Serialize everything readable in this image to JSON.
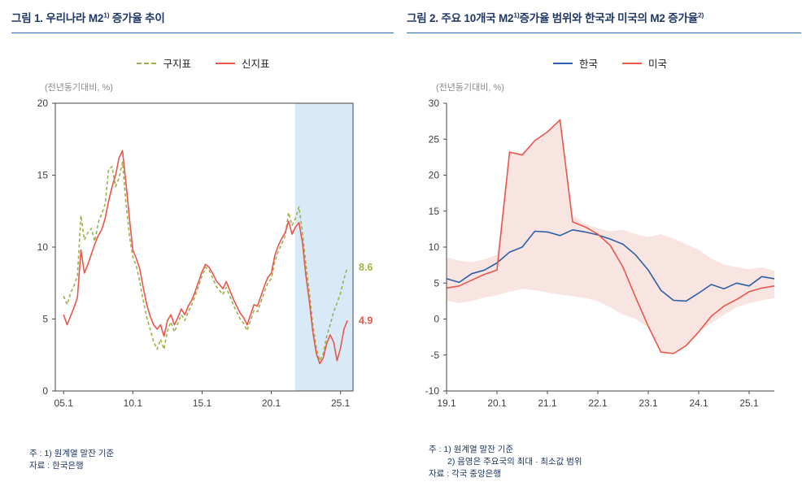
{
  "figures": [
    {
      "title_prefix": "그림 1. 우리나라 M2",
      "title_sup": "1)",
      "title_mid": " 증가율 추이",
      "title_sup2": "",
      "unit_label": "(전년동기대비, %)",
      "legend": [
        {
          "label": "구지표",
          "color": "#9bb348",
          "dash": true
        },
        {
          "label": "신지표",
          "color": "#e9564b",
          "dash": false
        }
      ],
      "notes": [
        "주 : 1) 원계열 말잔 기준",
        "자료 : 한국은행"
      ]
    },
    {
      "title_prefix": "그림 2. 주요 10개국 M2",
      "title_sup": "1)",
      "title_mid": "증가율 범위와 한국과 미국의 M2 증가율",
      "title_sup2": "2)",
      "unit_label": "(전년동기대비, %)",
      "legend": [
        {
          "label": "한국",
          "color": "#2b5fa8",
          "dash": false
        },
        {
          "label": "미국",
          "color": "#e9564b",
          "dash": false
        }
      ],
      "notes": [
        "주 : 1) 원계열 말잔 기준",
        "2) 음영은 주요국의 최대 · 최소값 범위",
        "자료 : 각국 중앙은행"
      ]
    }
  ],
  "chart_data": [
    {
      "type": "line",
      "title": "우리나라 M2 증가율 추이",
      "ylabel": "(전년동기대비, %)",
      "xlim": [
        2004.4,
        2025.9
      ],
      "ylim": [
        0,
        20
      ],
      "yticks": [
        0,
        5,
        10,
        15,
        20
      ],
      "xticks": [
        2005,
        2010,
        2015,
        2020,
        2025
      ],
      "xtick_labels": [
        "05.1",
        "10.1",
        "15.1",
        "20.1",
        "25.1"
      ],
      "frame": "box",
      "grid": false,
      "x_start": 2005.0,
      "x_step": 0.25,
      "highlight_span": {
        "x_from": 2021.7,
        "x_to": 2025.9,
        "color": "#d8eaf8"
      },
      "series": [
        {
          "name": "구지표",
          "color": "#9bb348",
          "dash": [
            4,
            3
          ],
          "end_label": "8.6",
          "values": [
            6.6,
            6.0,
            6.8,
            7.3,
            8.0,
            12.2,
            10.5,
            11.0,
            11.3,
            10.4,
            11.7,
            12.3,
            13.0,
            15.4,
            15.6,
            14.2,
            14.8,
            15.9,
            13.1,
            10.8,
            9.3,
            8.7,
            7.6,
            6.3,
            5.1,
            4.3,
            3.4,
            2.9,
            3.6,
            2.9,
            4.2,
            4.8,
            4.1,
            4.7,
            5.3,
            4.9,
            5.5,
            6.0,
            6.6,
            7.3,
            8.0,
            8.6,
            8.4,
            7.9,
            7.3,
            7.0,
            6.7,
            7.2,
            6.6,
            6.0,
            5.5,
            5.0,
            4.7,
            4.2,
            4.9,
            5.6,
            5.5,
            6.2,
            6.9,
            7.5,
            7.8,
            9.0,
            9.7,
            10.2,
            10.8,
            12.4,
            11.5,
            12.0,
            12.8,
            11.0,
            8.8,
            6.8,
            4.6,
            3.0,
            2.1,
            2.6,
            3.8,
            4.6,
            5.5,
            6.1,
            6.8,
            7.8,
            8.6
          ]
        },
        {
          "name": "신지표",
          "color": "#e9564b",
          "dash": null,
          "end_label": "4.9",
          "values": [
            5.3,
            4.6,
            5.2,
            5.8,
            6.5,
            9.8,
            8.2,
            8.8,
            9.5,
            10.2,
            10.8,
            11.2,
            12.0,
            13.2,
            14.2,
            15.0,
            16.2,
            16.7,
            14.5,
            12.0,
            9.8,
            9.2,
            8.5,
            7.2,
            6.0,
            5.2,
            4.6,
            4.3,
            4.6,
            3.8,
            4.9,
            5.3,
            4.6,
            5.1,
            5.7,
            5.3,
            5.9,
            6.3,
            6.9,
            7.6,
            8.3,
            8.8,
            8.6,
            8.2,
            7.7,
            7.4,
            7.1,
            7.6,
            7.0,
            6.4,
            5.9,
            5.4,
            5.1,
            4.6,
            5.3,
            6.0,
            5.9,
            6.6,
            7.3,
            7.9,
            8.2,
            9.4,
            10.1,
            10.6,
            11.0,
            11.8,
            10.9,
            11.4,
            11.7,
            10.3,
            8.0,
            6.2,
            4.1,
            2.6,
            1.9,
            2.3,
            3.3,
            3.9,
            3.4,
            2.1,
            3.0,
            4.3,
            4.9
          ]
        }
      ]
    },
    {
      "type": "line",
      "title": "주요 10개국 M2 증가율 범위와 한국과 미국의 M2 증가율",
      "ylabel": "(전년동기대비, %)",
      "xlim": [
        2019.0,
        2025.5
      ],
      "ylim": [
        -10,
        30
      ],
      "yticks": [
        -10,
        -5,
        0,
        5,
        10,
        15,
        20,
        25,
        30
      ],
      "xticks": [
        2019,
        2020,
        2021,
        2022,
        2023,
        2024,
        2025
      ],
      "xtick_labels": [
        "19.1",
        "20.1",
        "21.1",
        "22.1",
        "23.1",
        "24.1",
        "25.1"
      ],
      "frame": "axes",
      "grid": false,
      "x_start": 2019.0,
      "x_step": 0.25,
      "band": {
        "name": "주요국의 최대 · 최소값 범위",
        "color": "#f3cdc9",
        "opacity": 0.55,
        "top": [
          8.6,
          8.1,
          7.9,
          8.3,
          8.9,
          23.2,
          23.0,
          24.8,
          26.0,
          27.7,
          14.5,
          13.2,
          12.6,
          12.2,
          12.4,
          11.8,
          11.4,
          11.8,
          11.2,
          10.4,
          9.6,
          8.4,
          7.6,
          7.2,
          6.9,
          7.2,
          6.7
        ],
        "bottom": [
          2.6,
          2.2,
          2.5,
          3.0,
          3.3,
          3.8,
          4.2,
          4.0,
          3.7,
          3.4,
          3.2,
          2.9,
          2.5,
          1.6,
          0.6,
          0.0,
          -1.2,
          -4.6,
          -4.8,
          -3.7,
          -1.8,
          -0.6,
          0.6,
          1.6,
          2.2,
          2.6,
          2.9
        ]
      },
      "series": [
        {
          "name": "한국",
          "color": "#2b5fa8",
          "dash": null,
          "values": [
            5.6,
            5.1,
            6.3,
            6.8,
            7.8,
            9.3,
            10.0,
            12.2,
            12.1,
            11.6,
            12.4,
            12.1,
            11.7,
            11.1,
            10.4,
            8.9,
            6.8,
            4.0,
            2.6,
            2.5,
            3.6,
            4.8,
            4.2,
            5.0,
            4.6,
            5.9,
            5.6
          ]
        },
        {
          "name": "미국",
          "color": "#e9564b",
          "dash": null,
          "values": [
            4.3,
            4.6,
            5.4,
            6.2,
            6.8,
            23.2,
            22.8,
            24.8,
            26.0,
            27.7,
            13.5,
            12.8,
            11.8,
            10.2,
            7.2,
            3.0,
            -1.0,
            -4.6,
            -4.8,
            -3.7,
            -1.8,
            0.4,
            1.8,
            2.7,
            3.8,
            4.3,
            4.6
          ]
        }
      ]
    }
  ]
}
